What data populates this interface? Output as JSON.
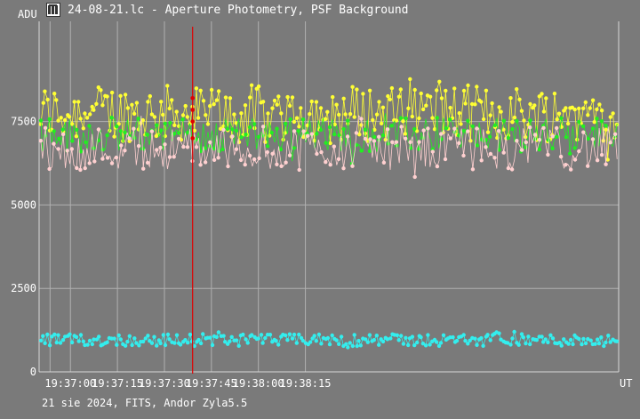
{
  "window": {
    "title": "24-08-21.lc - Aperture Photometry, PSF Background",
    "footer": "21 sie 2024, FITS, Andor Zyla5.5"
  },
  "chart_data": {
    "type": "scatter",
    "title": "",
    "ylabel": "ADU",
    "xlabel": "UT",
    "ylim": [
      0,
      10500
    ],
    "xlim_seconds": [
      -10,
      175
    ],
    "x_ticks": [
      {
        "label": "19:37:00",
        "t": 0
      },
      {
        "label": "19:37:15",
        "t": 15
      },
      {
        "label": "19:37:30",
        "t": 30
      },
      {
        "label": "19:37:45",
        "t": 45
      },
      {
        "label": "19:38:00",
        "t": 60
      },
      {
        "label": "19:38:15",
        "t": 75
      }
    ],
    "y_ticks": [
      {
        "label": "0",
        "v": 0
      },
      {
        "label": "2500",
        "v": 2500
      },
      {
        "label": "5000",
        "v": 5000
      },
      {
        "label": "7500",
        "v": 7500
      }
    ],
    "grid": true,
    "cursor": {
      "t": 39,
      "color": "#e00000"
    },
    "colors": {
      "background": "#7a7a7a",
      "grid": "#b0b0b0",
      "yellow": "#ffff33",
      "green": "#22ee22",
      "pink": "#ffd0d0",
      "cyan": "#33eeee",
      "cursor": "#e00000"
    },
    "series": [
      {
        "key": "yellow",
        "color": "#ffff33",
        "mean": 7750,
        "amp": 850
      },
      {
        "key": "green",
        "color": "#22ee22",
        "mean": 7100,
        "amp": 520
      },
      {
        "key": "pink",
        "color": "#ffd0d0",
        "mean": 6700,
        "amp": 650
      },
      {
        "key": "cyan",
        "color": "#33eeee",
        "mean": 950,
        "amp": 180
      }
    ]
  }
}
